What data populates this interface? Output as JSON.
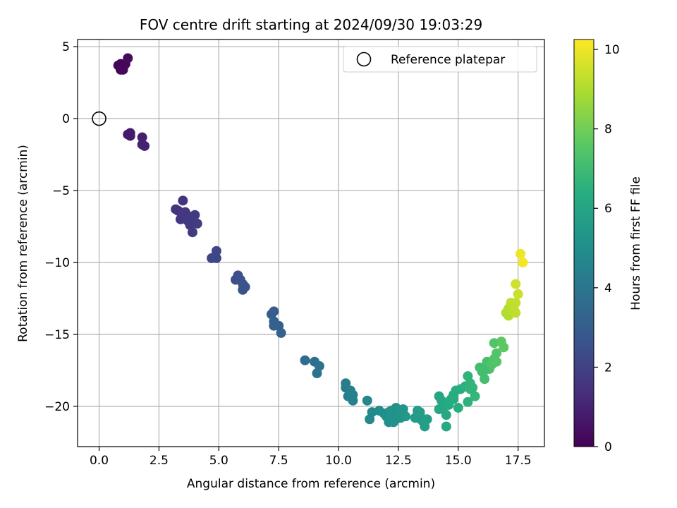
{
  "chart_data": {
    "type": "scatter",
    "title": "FOV centre drift starting at 2024/09/30 19:03:29",
    "xlabel": "Angular distance from reference (arcmin)",
    "ylabel": "Rotation from reference (arcmin)",
    "xlim": [
      -0.9,
      18.6
    ],
    "ylim": [
      -22.8,
      5.5
    ],
    "xticks": [
      "0.0",
      "2.5",
      "5.0",
      "7.5",
      "10.0",
      "12.5",
      "15.0",
      "17.5"
    ],
    "yticks": [
      "5",
      "0",
      "−5",
      "−10",
      "−15",
      "−20"
    ],
    "grid": true,
    "colormap": "viridis",
    "colorbar": {
      "label": "Hours from first FF file",
      "range": [
        0,
        10.25
      ],
      "ticks": [
        "0",
        "2",
        "4",
        "6",
        "8",
        "10"
      ]
    },
    "legend": {
      "position": "top-right",
      "entries": [
        {
          "label": "Reference platepar",
          "marker": "open-circle"
        }
      ]
    },
    "reference_point": {
      "x": 0.0,
      "y": 0.0
    },
    "points": [
      {
        "x": 0.8,
        "y": 3.7,
        "t": 0.1
      },
      {
        "x": 0.9,
        "y": 3.4,
        "t": 0.1
      },
      {
        "x": 1.0,
        "y": 3.6,
        "t": 0.2
      },
      {
        "x": 1.0,
        "y": 3.4,
        "t": 0.2
      },
      {
        "x": 0.9,
        "y": 3.8,
        "t": 0.15
      },
      {
        "x": 1.1,
        "y": 3.8,
        "t": 0.2
      },
      {
        "x": 1.2,
        "y": 4.2,
        "t": 0.25
      },
      {
        "x": 1.0,
        "y": 3.5,
        "t": 0.2
      },
      {
        "x": 1.2,
        "y": -1.1,
        "t": 0.7
      },
      {
        "x": 1.3,
        "y": -1.0,
        "t": 0.75
      },
      {
        "x": 1.3,
        "y": -1.2,
        "t": 0.75
      },
      {
        "x": 1.8,
        "y": -1.3,
        "t": 0.9
      },
      {
        "x": 1.8,
        "y": -1.8,
        "t": 0.95
      },
      {
        "x": 1.9,
        "y": -1.9,
        "t": 1.0
      },
      {
        "x": 3.2,
        "y": -6.3,
        "t": 1.5
      },
      {
        "x": 3.3,
        "y": -6.4,
        "t": 1.5
      },
      {
        "x": 3.4,
        "y": -7.0,
        "t": 1.6
      },
      {
        "x": 3.5,
        "y": -5.7,
        "t": 1.55
      },
      {
        "x": 3.5,
        "y": -6.6,
        "t": 1.6
      },
      {
        "x": 3.6,
        "y": -6.8,
        "t": 1.65
      },
      {
        "x": 3.7,
        "y": -7.1,
        "t": 1.7
      },
      {
        "x": 3.8,
        "y": -7.4,
        "t": 1.7
      },
      {
        "x": 3.9,
        "y": -7.9,
        "t": 1.75
      },
      {
        "x": 3.9,
        "y": -6.8,
        "t": 1.7
      },
      {
        "x": 4.0,
        "y": -6.7,
        "t": 1.75
      },
      {
        "x": 4.1,
        "y": -7.3,
        "t": 1.8
      },
      {
        "x": 3.6,
        "y": -6.5,
        "t": 1.6
      },
      {
        "x": 4.7,
        "y": -9.7,
        "t": 2.1
      },
      {
        "x": 4.9,
        "y": -9.7,
        "t": 2.15
      },
      {
        "x": 4.9,
        "y": -9.2,
        "t": 2.15
      },
      {
        "x": 5.8,
        "y": -10.9,
        "t": 2.45
      },
      {
        "x": 5.7,
        "y": -11.2,
        "t": 2.45
      },
      {
        "x": 5.9,
        "y": -11.2,
        "t": 2.5
      },
      {
        "x": 6.0,
        "y": -11.5,
        "t": 2.55
      },
      {
        "x": 6.0,
        "y": -11.9,
        "t": 2.6
      },
      {
        "x": 6.1,
        "y": -11.7,
        "t": 2.6
      },
      {
        "x": 7.2,
        "y": -13.6,
        "t": 3.05
      },
      {
        "x": 7.3,
        "y": -13.4,
        "t": 3.05
      },
      {
        "x": 7.3,
        "y": -14.1,
        "t": 3.1
      },
      {
        "x": 7.3,
        "y": -14.4,
        "t": 3.1
      },
      {
        "x": 7.5,
        "y": -14.4,
        "t": 3.15
      },
      {
        "x": 7.6,
        "y": -14.9,
        "t": 3.2
      },
      {
        "x": 8.6,
        "y": -16.8,
        "t": 3.65
      },
      {
        "x": 9.0,
        "y": -16.9,
        "t": 3.75
      },
      {
        "x": 9.1,
        "y": -17.7,
        "t": 3.8
      },
      {
        "x": 9.2,
        "y": -17.2,
        "t": 3.85
      },
      {
        "x": 10.3,
        "y": -18.4,
        "t": 4.3
      },
      {
        "x": 10.3,
        "y": -18.7,
        "t": 4.3
      },
      {
        "x": 10.4,
        "y": -19.3,
        "t": 4.35
      },
      {
        "x": 10.5,
        "y": -18.9,
        "t": 4.4
      },
      {
        "x": 10.6,
        "y": -19.2,
        "t": 4.45
      },
      {
        "x": 10.6,
        "y": -19.6,
        "t": 4.45
      },
      {
        "x": 11.2,
        "y": -19.6,
        "t": 4.7
      },
      {
        "x": 11.3,
        "y": -20.9,
        "t": 4.75
      },
      {
        "x": 11.4,
        "y": -20.4,
        "t": 4.8
      },
      {
        "x": 11.7,
        "y": -20.3,
        "t": 4.9
      },
      {
        "x": 11.9,
        "y": -20.5,
        "t": 5.0
      },
      {
        "x": 12.0,
        "y": -20.7,
        "t": 5.05
      },
      {
        "x": 12.1,
        "y": -20.4,
        "t": 5.1
      },
      {
        "x": 12.1,
        "y": -21.1,
        "t": 5.1
      },
      {
        "x": 12.2,
        "y": -20.8,
        "t": 5.15
      },
      {
        "x": 12.3,
        "y": -21.1,
        "t": 5.15
      },
      {
        "x": 12.4,
        "y": -20.1,
        "t": 5.2
      },
      {
        "x": 12.5,
        "y": -20.6,
        "t": 5.25
      },
      {
        "x": 12.6,
        "y": -20.8,
        "t": 5.3
      },
      {
        "x": 12.7,
        "y": -20.2,
        "t": 5.35
      },
      {
        "x": 12.8,
        "y": -20.7,
        "t": 5.4
      },
      {
        "x": 12.2,
        "y": -20.3,
        "t": 5.15
      },
      {
        "x": 12.4,
        "y": -20.9,
        "t": 5.2
      },
      {
        "x": 13.2,
        "y": -20.8,
        "t": 5.55
      },
      {
        "x": 13.3,
        "y": -20.3,
        "t": 5.6
      },
      {
        "x": 13.4,
        "y": -20.4,
        "t": 5.6
      },
      {
        "x": 13.5,
        "y": -21.0,
        "t": 5.65
      },
      {
        "x": 13.6,
        "y": -21.4,
        "t": 5.7
      },
      {
        "x": 13.7,
        "y": -20.9,
        "t": 5.75
      },
      {
        "x": 13.4,
        "y": -20.6,
        "t": 5.6
      },
      {
        "x": 13.3,
        "y": -20.8,
        "t": 5.6
      },
      {
        "x": 14.2,
        "y": -19.3,
        "t": 6.0
      },
      {
        "x": 14.2,
        "y": -20.2,
        "t": 6.05
      },
      {
        "x": 14.3,
        "y": -19.6,
        "t": 6.05
      },
      {
        "x": 14.4,
        "y": -20.1,
        "t": 6.1
      },
      {
        "x": 14.5,
        "y": -20.6,
        "t": 6.15
      },
      {
        "x": 14.5,
        "y": -21.4,
        "t": 6.2
      },
      {
        "x": 14.6,
        "y": -19.9,
        "t": 6.2
      },
      {
        "x": 14.7,
        "y": -19.5,
        "t": 6.25
      },
      {
        "x": 14.8,
        "y": -19.2,
        "t": 6.3
      },
      {
        "x": 14.9,
        "y": -18.9,
        "t": 6.35
      },
      {
        "x": 15.0,
        "y": -20.1,
        "t": 6.4
      },
      {
        "x": 15.1,
        "y": -18.8,
        "t": 6.4
      },
      {
        "x": 15.3,
        "y": -18.6,
        "t": 6.5
      },
      {
        "x": 15.4,
        "y": -19.7,
        "t": 6.55
      },
      {
        "x": 15.4,
        "y": -17.9,
        "t": 6.6
      },
      {
        "x": 15.5,
        "y": -18.4,
        "t": 6.65
      },
      {
        "x": 15.6,
        "y": -18.7,
        "t": 6.7
      },
      {
        "x": 15.7,
        "y": -19.3,
        "t": 6.75
      },
      {
        "x": 14.6,
        "y": -19.7,
        "t": 6.2
      },
      {
        "x": 14.8,
        "y": -19.5,
        "t": 6.3
      },
      {
        "x": 15.5,
        "y": -18.8,
        "t": 6.65
      },
      {
        "x": 15.9,
        "y": -17.3,
        "t": 7.0
      },
      {
        "x": 16.0,
        "y": -17.6,
        "t": 7.05
      },
      {
        "x": 16.1,
        "y": -18.1,
        "t": 7.1
      },
      {
        "x": 16.2,
        "y": -17.3,
        "t": 7.15
      },
      {
        "x": 16.2,
        "y": -16.9,
        "t": 7.2
      },
      {
        "x": 16.3,
        "y": -17.4,
        "t": 7.25
      },
      {
        "x": 16.4,
        "y": -17.1,
        "t": 7.3
      },
      {
        "x": 16.5,
        "y": -16.7,
        "t": 7.35
      },
      {
        "x": 16.5,
        "y": -15.6,
        "t": 7.4
      },
      {
        "x": 16.6,
        "y": -16.3,
        "t": 7.45
      },
      {
        "x": 16.6,
        "y": -16.9,
        "t": 7.45
      },
      {
        "x": 16.8,
        "y": -15.5,
        "t": 7.6
      },
      {
        "x": 16.9,
        "y": -15.9,
        "t": 7.65
      },
      {
        "x": 16.1,
        "y": -17.5,
        "t": 7.1
      },
      {
        "x": 17.0,
        "y": -13.5,
        "t": 9.0
      },
      {
        "x": 17.1,
        "y": -13.2,
        "t": 9.1
      },
      {
        "x": 17.1,
        "y": -13.7,
        "t": 9.05
      },
      {
        "x": 17.2,
        "y": -12.8,
        "t": 9.2
      },
      {
        "x": 17.3,
        "y": -13.3,
        "t": 9.2
      },
      {
        "x": 17.4,
        "y": -12.8,
        "t": 9.3
      },
      {
        "x": 17.4,
        "y": -11.5,
        "t": 9.5
      },
      {
        "x": 17.4,
        "y": -13.5,
        "t": 9.25
      },
      {
        "x": 17.5,
        "y": -12.2,
        "t": 9.45
      },
      {
        "x": 17.6,
        "y": -9.4,
        "t": 10.0
      },
      {
        "x": 17.7,
        "y": -10.0,
        "t": 10.1
      },
      {
        "x": 17.3,
        "y": -12.9,
        "t": 9.25
      }
    ]
  }
}
